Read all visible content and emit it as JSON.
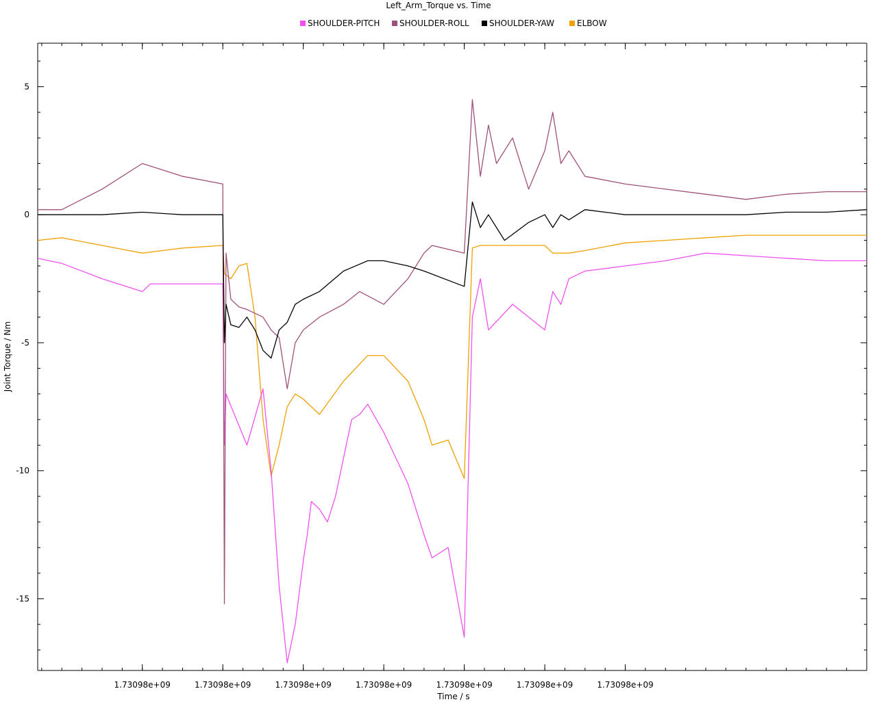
{
  "chart_data": {
    "type": "line",
    "title": "Left_Arm_Torque vs. Time",
    "xlabel": "Time / s",
    "ylabel": "Joint Torque / Nm",
    "ylim": [
      -17.8,
      6.7
    ],
    "xlim": [
      -0.03,
      1.0
    ],
    "x_tick_labels": [
      "1.73098e+09",
      "1.73098e+09",
      "1.73098e+09",
      "1.73098e+09",
      "1.73098e+09",
      "1.73098e+09",
      "1.73098e+09"
    ],
    "x_ticks": [
      0.1,
      0.2,
      0.3,
      0.4,
      0.5,
      0.6,
      0.7
    ],
    "y_ticks": [
      5,
      0,
      -5,
      -10,
      -15
    ],
    "legend": "top-center",
    "grid": false,
    "series": [
      {
        "name": "SHOULDER-PITCH",
        "color": "#f050f0",
        "x": [
          -0.03,
          0.0,
          0.05,
          0.1,
          0.11,
          0.15,
          0.2,
          0.202,
          0.204,
          0.23,
          0.25,
          0.26,
          0.27,
          0.28,
          0.29,
          0.3,
          0.305,
          0.31,
          0.32,
          0.33,
          0.34,
          0.35,
          0.36,
          0.37,
          0.38,
          0.4,
          0.43,
          0.45,
          0.46,
          0.48,
          0.5,
          0.51,
          0.52,
          0.53,
          0.56,
          0.6,
          0.61,
          0.62,
          0.63,
          0.65,
          0.7,
          0.75,
          0.8,
          0.85,
          0.9,
          0.95,
          1.0
        ],
        "y": [
          -1.7,
          -1.9,
          -2.5,
          -3.0,
          -2.7,
          -2.7,
          -2.7,
          -9.0,
          -7.0,
          -9.0,
          -6.8,
          -10.0,
          -14.5,
          -17.5,
          -16.0,
          -13.5,
          -12.5,
          -11.2,
          -11.5,
          -12.0,
          -11.0,
          -9.5,
          -8.0,
          -7.8,
          -7.4,
          -8.5,
          -10.5,
          -12.5,
          -13.4,
          -13.0,
          -16.5,
          -4.0,
          -2.5,
          -4.5,
          -3.5,
          -4.5,
          -3.0,
          -3.5,
          -2.5,
          -2.2,
          -2.0,
          -1.8,
          -1.5,
          -1.6,
          -1.7,
          -1.8,
          -1.8
        ]
      },
      {
        "name": "SHOULDER-ROLL",
        "color": "#a0507a",
        "x": [
          -0.03,
          0.0,
          0.05,
          0.1,
          0.11,
          0.15,
          0.2,
          0.202,
          0.204,
          0.21,
          0.22,
          0.23,
          0.25,
          0.26,
          0.27,
          0.28,
          0.29,
          0.3,
          0.32,
          0.35,
          0.37,
          0.4,
          0.43,
          0.45,
          0.46,
          0.5,
          0.51,
          0.52,
          0.53,
          0.54,
          0.56,
          0.58,
          0.6,
          0.61,
          0.62,
          0.63,
          0.65,
          0.7,
          0.75,
          0.8,
          0.85,
          0.9,
          0.95,
          1.0
        ],
        "y": [
          0.2,
          0.2,
          1.0,
          2.0,
          1.9,
          1.5,
          1.2,
          -15.2,
          -1.5,
          -3.3,
          -3.6,
          -3.7,
          -4.0,
          -4.5,
          -4.8,
          -6.8,
          -5.0,
          -4.5,
          -4.0,
          -3.5,
          -3.0,
          -3.5,
          -2.5,
          -1.5,
          -1.2,
          -1.5,
          4.5,
          1.5,
          3.5,
          2.0,
          3.0,
          1.0,
          2.5,
          4.0,
          2.0,
          2.5,
          1.5,
          1.2,
          1.0,
          0.8,
          0.6,
          0.8,
          0.9,
          0.9
        ]
      },
      {
        "name": "SHOULDER-YAW",
        "color": "#000000",
        "x": [
          -0.03,
          0.0,
          0.05,
          0.1,
          0.15,
          0.2,
          0.202,
          0.204,
          0.21,
          0.22,
          0.23,
          0.24,
          0.25,
          0.26,
          0.27,
          0.28,
          0.29,
          0.3,
          0.32,
          0.35,
          0.38,
          0.4,
          0.43,
          0.45,
          0.5,
          0.51,
          0.52,
          0.53,
          0.55,
          0.58,
          0.6,
          0.61,
          0.62,
          0.63,
          0.65,
          0.7,
          0.75,
          0.8,
          0.85,
          0.9,
          0.95,
          1.0
        ],
        "y": [
          0.0,
          0.0,
          0.0,
          0.1,
          0.0,
          0.0,
          -5.0,
          -3.5,
          -4.3,
          -4.4,
          -4.0,
          -4.5,
          -5.3,
          -5.6,
          -4.5,
          -4.2,
          -3.5,
          -3.3,
          -3.0,
          -2.2,
          -1.8,
          -1.8,
          -2.0,
          -2.2,
          -2.8,
          0.5,
          -0.5,
          0.0,
          -1.0,
          -0.3,
          0.0,
          -0.5,
          0.0,
          -0.2,
          0.2,
          0.0,
          0.0,
          0.0,
          0.0,
          0.1,
          0.1,
          0.2
        ]
      },
      {
        "name": "ELBOW",
        "color": "#f0a000",
        "x": [
          -0.03,
          0.0,
          0.05,
          0.1,
          0.15,
          0.2,
          0.202,
          0.21,
          0.22,
          0.23,
          0.24,
          0.25,
          0.26,
          0.27,
          0.28,
          0.29,
          0.3,
          0.32,
          0.35,
          0.38,
          0.4,
          0.43,
          0.45,
          0.46,
          0.48,
          0.5,
          0.51,
          0.52,
          0.55,
          0.6,
          0.61,
          0.63,
          0.65,
          0.7,
          0.75,
          0.8,
          0.85,
          0.9,
          0.95,
          1.0
        ],
        "y": [
          -1.0,
          -0.9,
          -1.2,
          -1.5,
          -1.3,
          -1.2,
          -2.3,
          -2.5,
          -2.0,
          -1.9,
          -4.0,
          -8.0,
          -10.2,
          -9.0,
          -7.5,
          -7.0,
          -7.2,
          -7.8,
          -6.5,
          -5.5,
          -5.5,
          -6.5,
          -8.0,
          -9.0,
          -8.8,
          -10.3,
          -1.3,
          -1.2,
          -1.2,
          -1.2,
          -1.5,
          -1.5,
          -1.4,
          -1.1,
          -1.0,
          -0.9,
          -0.8,
          -0.8,
          -0.8,
          -0.8
        ]
      }
    ]
  }
}
